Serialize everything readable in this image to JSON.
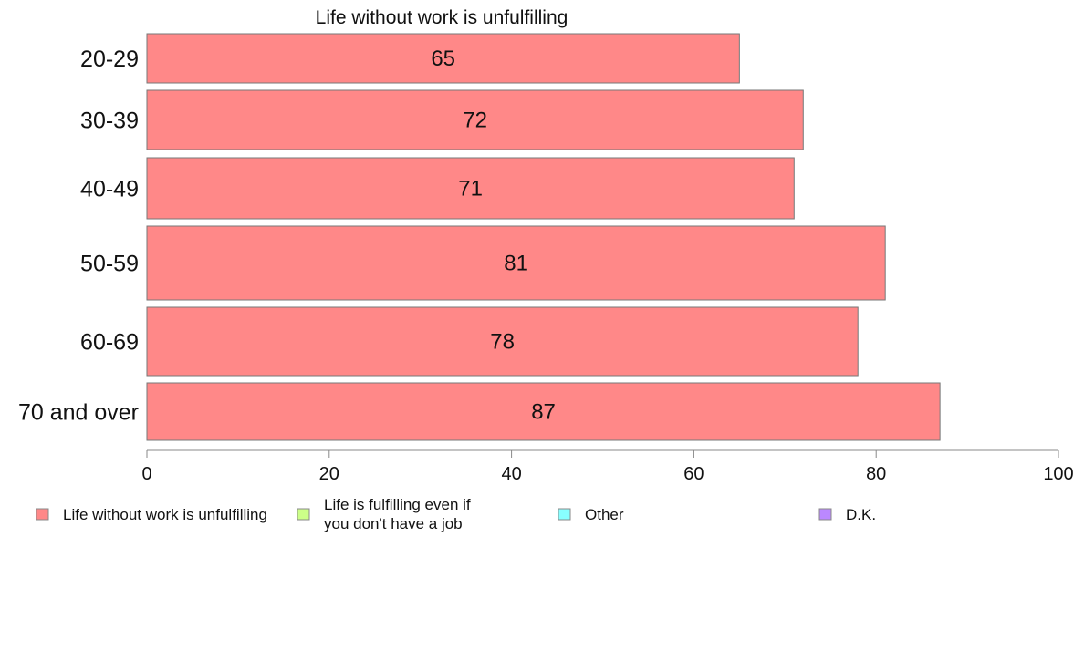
{
  "chart_data": {
    "type": "bar",
    "orientation": "horizontal",
    "title": "Life without work is unfulfilling",
    "categories": [
      "20-29",
      "30-39",
      "40-49",
      "50-59",
      "60-69",
      "70 and over"
    ],
    "series": [
      {
        "name": "Life without work is unfulfilling",
        "values": [
          65,
          72,
          71,
          81,
          78,
          87
        ],
        "color": "#ff8888"
      }
    ],
    "data_labels": [
      "65",
      "72",
      "71",
      "81",
      "78",
      "87"
    ],
    "xlim": [
      0,
      100
    ],
    "x_ticks": [
      0,
      20,
      40,
      60,
      80,
      100
    ],
    "x_tick_labels": [
      "0",
      "20",
      "40",
      "60",
      "80",
      "100"
    ],
    "xlabel": "",
    "ylabel": "",
    "grid": false,
    "legend_position": "bottom",
    "legend": [
      {
        "lines": [
          "Life without work is unfulfilling"
        ],
        "color": "#ff8888"
      },
      {
        "lines": [
          "Life is fulfilling even if",
          "you don't have a job"
        ],
        "color": "#ccff88"
      },
      {
        "lines": [
          "Other"
        ],
        "color": "#88ffff"
      },
      {
        "lines": [
          "D.K."
        ],
        "color": "#bb88ff"
      }
    ]
  }
}
